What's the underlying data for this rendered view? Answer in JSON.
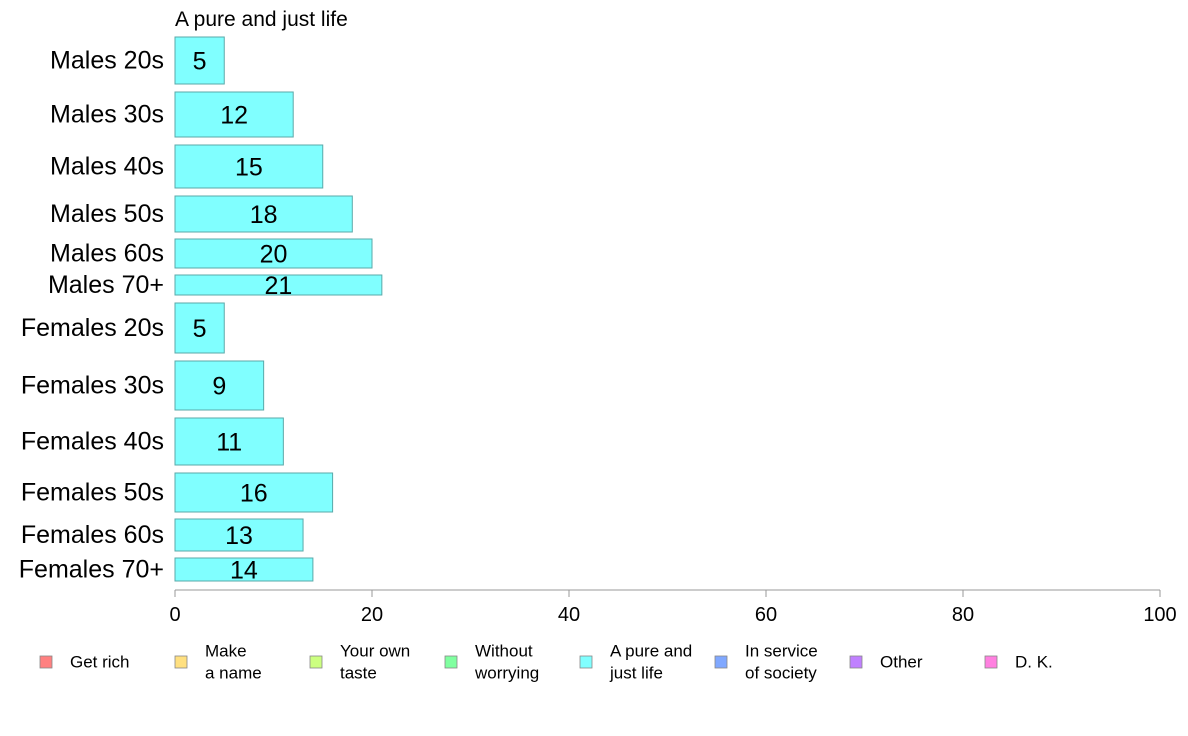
{
  "chart_data": {
    "type": "bar",
    "orientation": "horizontal",
    "title": "A pure and just life",
    "xlabel": "",
    "ylabel": "",
    "xlim": [
      0,
      100
    ],
    "xticks": [
      0,
      20,
      40,
      60,
      80,
      100
    ],
    "grid": false,
    "legend_position": "bottom",
    "bar_color": "#80ffff",
    "bar_edge_color": "#5aa8a8",
    "categories": [
      "Males 20s",
      "Males 30s",
      "Males 40s",
      "Males 50s",
      "Males 60s",
      "Males 70+",
      "Females 20s",
      "Females 30s",
      "Females 40s",
      "Females 50s",
      "Females 60s",
      "Females 70+"
    ],
    "values": [
      5,
      12,
      15,
      18,
      20,
      21,
      5,
      9,
      11,
      16,
      13,
      14
    ],
    "series": [
      {
        "name": "A pure and just life",
        "values": [
          5,
          12,
          15,
          18,
          20,
          21,
          5,
          9,
          11,
          16,
          13,
          14
        ]
      }
    ],
    "legend": [
      {
        "lines": [
          "Get rich"
        ],
        "color": "#ff8080"
      },
      {
        "lines": [
          "Make",
          "a name"
        ],
        "color": "#ffe080"
      },
      {
        "lines": [
          "Your own",
          "taste"
        ],
        "color": "#ccff80"
      },
      {
        "lines": [
          "Without",
          "worrying"
        ],
        "color": "#80ffa0"
      },
      {
        "lines": [
          "A pure and",
          "just life"
        ],
        "color": "#80ffff"
      },
      {
        "lines": [
          "In service",
          "of society"
        ],
        "color": "#80a8ff"
      },
      {
        "lines": [
          "Other"
        ],
        "color": "#c080ff"
      },
      {
        "lines": [
          "D. K."
        ],
        "color": "#ff80e0"
      }
    ]
  }
}
